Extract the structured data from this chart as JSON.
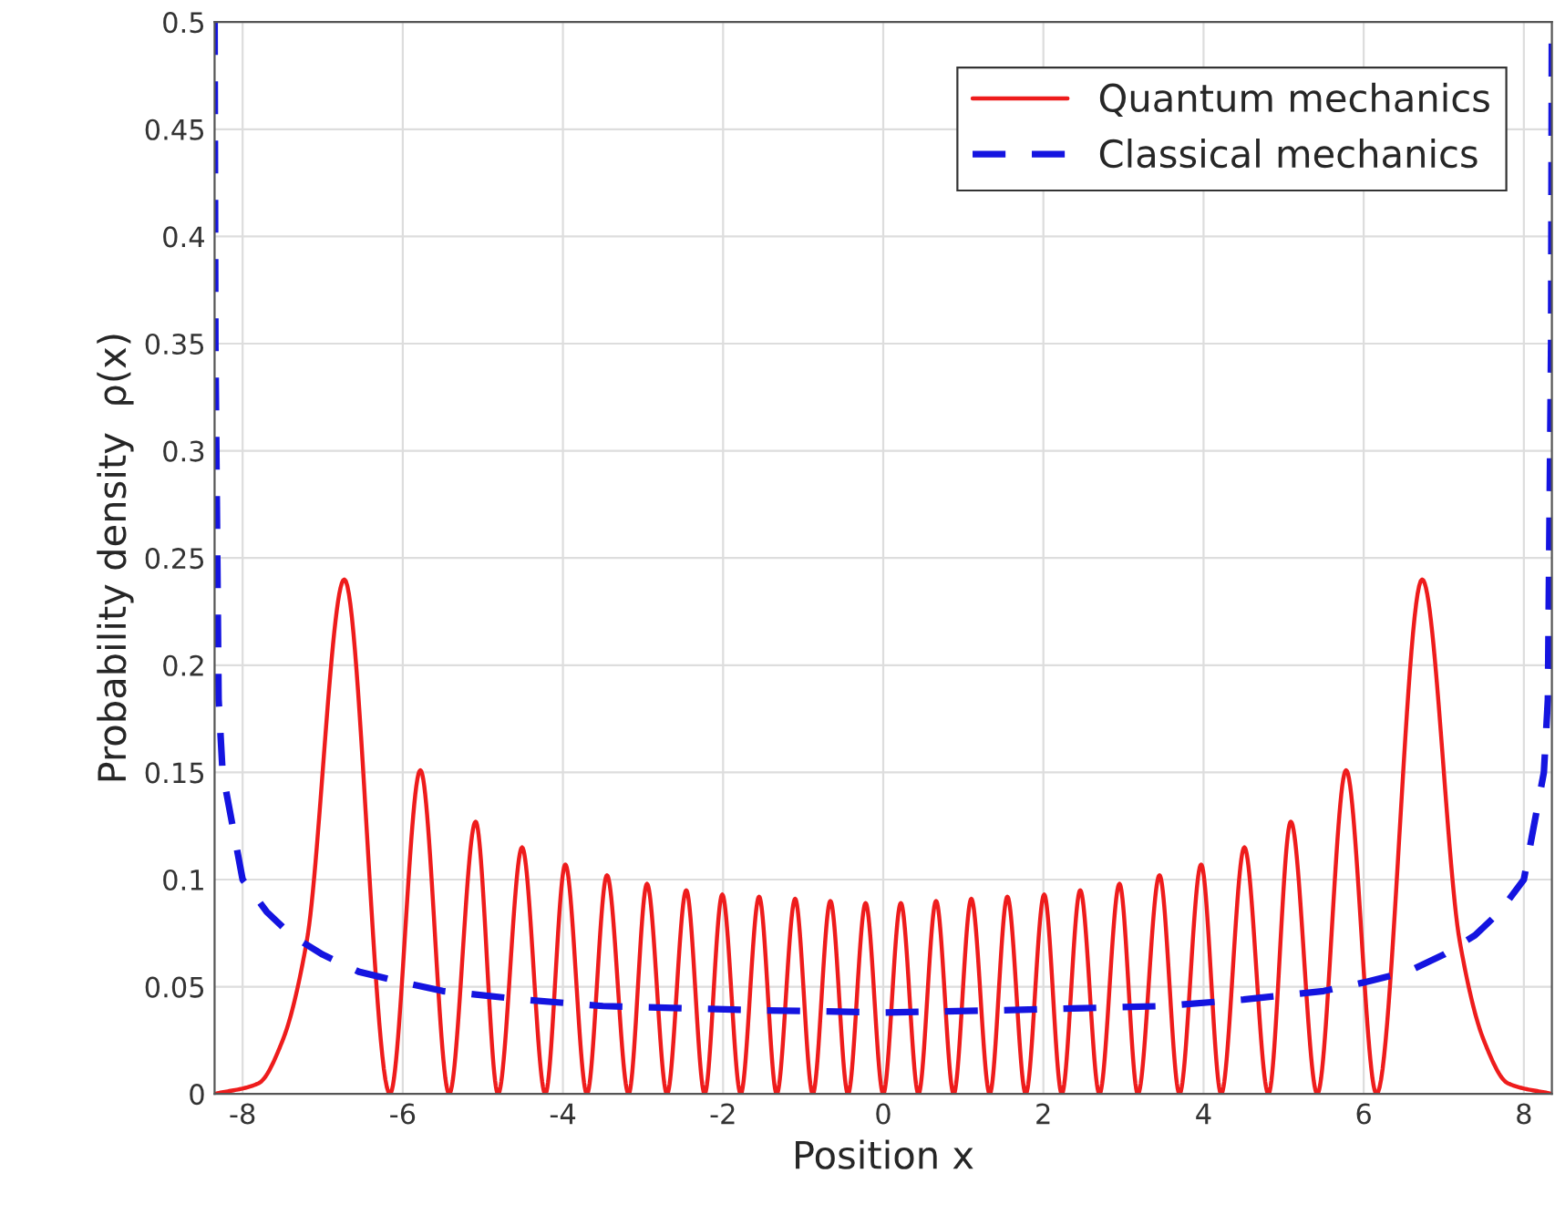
{
  "chart_data": {
    "type": "line",
    "xlabel": "Position x",
    "ylabel": "Probability density  ρ(x)",
    "xlim": [
      -8.35,
      8.35
    ],
    "ylim": [
      0,
      0.5
    ],
    "xticks": [
      -8,
      -6,
      -4,
      -2,
      0,
      2,
      4,
      6,
      8
    ],
    "yticks": [
      0,
      0.05,
      0.1,
      0.15,
      0.2,
      0.25,
      0.3,
      0.35,
      0.4,
      0.45,
      0.5
    ],
    "grid": true,
    "legend": "top right",
    "series": [
      {
        "name": "Quantum mechanics",
        "color": "#ee1c1c",
        "line_style": "solid",
        "x": [
          -8.35,
          -7.8,
          -7.5,
          -7.2,
          -6.73,
          -6.16,
          -5.78,
          -5.42,
          -5.09,
          -4.81,
          -4.51,
          -4.22,
          -3.97,
          -3.7,
          -3.45,
          -3.18,
          -2.95,
          -2.7,
          -2.46,
          -2.23,
          -2.01,
          -1.78,
          -1.55,
          -1.33,
          -1.1,
          -0.88,
          -0.66,
          -0.44,
          -0.22,
          0,
          0.22,
          0.44,
          0.66,
          0.88,
          1.1,
          1.33,
          1.55,
          1.78,
          2.01,
          2.23,
          2.46,
          2.7,
          2.95,
          3.18,
          3.45,
          3.7,
          3.97,
          4.22,
          4.51,
          4.81,
          5.09,
          5.42,
          5.78,
          6.16,
          6.73,
          7.2,
          7.5,
          7.8,
          8.35
        ],
        "values": [
          0,
          0.005,
          0.025,
          0.071,
          0.24,
          0,
          0.151,
          0,
          0.127,
          0,
          0.115,
          0,
          0.107,
          0,
          0.102,
          0,
          0.098,
          0,
          0.095,
          0,
          0.093,
          0,
          0.092,
          0,
          0.091,
          0,
          0.09,
          0,
          0.089,
          0,
          0.089,
          0,
          0.09,
          0,
          0.091,
          0,
          0.092,
          0,
          0.093,
          0,
          0.095,
          0,
          0.098,
          0,
          0.102,
          0,
          0.107,
          0,
          0.115,
          0,
          0.127,
          0,
          0.151,
          0,
          0.24,
          0.071,
          0.025,
          0.005,
          0
        ]
      },
      {
        "name": "Classical mechanics",
        "color": "#1414e0",
        "line_style": "dashed",
        "x": [
          -8.35,
          -8.34,
          -8.3,
          -8.25,
          -8.0,
          -7.7,
          -7.39,
          -7.0,
          -6.55,
          -6.0,
          -5.5,
          -4.5,
          -3.5,
          -2.5,
          -1.5,
          0,
          1.5,
          2.5,
          3.5,
          4.5,
          5.5,
          6.0,
          6.55,
          7.0,
          7.39,
          7.7,
          8.0,
          8.25,
          8.3,
          8.34,
          8.35
        ],
        "values": [
          0.5,
          0.35,
          0.184,
          0.15,
          0.1,
          0.085,
          0.074,
          0.065,
          0.057,
          0.052,
          0.048,
          0.044,
          0.041,
          0.04,
          0.039,
          0.038,
          0.039,
          0.04,
          0.041,
          0.044,
          0.048,
          0.052,
          0.057,
          0.065,
          0.074,
          0.085,
          0.1,
          0.15,
          0.184,
          0.35,
          0.5
        ]
      }
    ]
  }
}
